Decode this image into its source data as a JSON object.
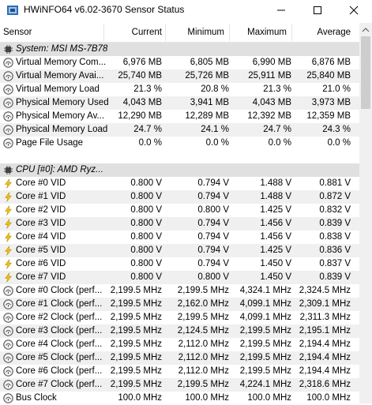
{
  "window": {
    "title": "HWiNFO64 v6.02-3670 Sensor Status"
  },
  "columns": [
    "Sensor",
    "Current",
    "Minimum",
    "Maximum",
    "Average"
  ],
  "rows": [
    {
      "kind": "group",
      "icon": "chip-icon",
      "label": "System: MSI MS-7B78"
    },
    {
      "kind": "sensor",
      "icon": "gauge-icon",
      "name": "Virtual Memory Com...",
      "cur": "6,976 MB",
      "min": "6,805 MB",
      "max": "6,990 MB",
      "avg": "6,876 MB"
    },
    {
      "kind": "sensor",
      "icon": "gauge-icon",
      "name": "Virtual Memory Avai...",
      "cur": "25,740 MB",
      "min": "25,726 MB",
      "max": "25,911 MB",
      "avg": "25,840 MB"
    },
    {
      "kind": "sensor",
      "icon": "gauge-icon",
      "name": "Virtual Memory Load",
      "cur": "21.3 %",
      "min": "20.8 %",
      "max": "21.3 %",
      "avg": "21.0 %"
    },
    {
      "kind": "sensor",
      "icon": "gauge-icon",
      "name": "Physical Memory Used",
      "cur": "4,043 MB",
      "min": "3,941 MB",
      "max": "4,043 MB",
      "avg": "3,973 MB"
    },
    {
      "kind": "sensor",
      "icon": "gauge-icon",
      "name": "Physical Memory Av...",
      "cur": "12,290 MB",
      "min": "12,289 MB",
      "max": "12,392 MB",
      "avg": "12,359 MB"
    },
    {
      "kind": "sensor",
      "icon": "gauge-icon",
      "name": "Physical Memory Load",
      "cur": "24.7 %",
      "min": "24.1 %",
      "max": "24.7 %",
      "avg": "24.3 %"
    },
    {
      "kind": "sensor",
      "icon": "gauge-icon",
      "name": "Page File Usage",
      "cur": "0.0 %",
      "min": "0.0 %",
      "max": "0.0 %",
      "avg": "0.0 %"
    },
    {
      "kind": "spacer"
    },
    {
      "kind": "group",
      "icon": "chip-icon",
      "label": "CPU [#0]: AMD Ryz..."
    },
    {
      "kind": "sensor",
      "icon": "lightning-icon",
      "name": "Core #0 VID",
      "cur": "0.800 V",
      "min": "0.794 V",
      "max": "1.488 V",
      "avg": "0.881 V"
    },
    {
      "kind": "sensor",
      "icon": "lightning-icon",
      "name": "Core #1 VID",
      "cur": "0.800 V",
      "min": "0.794 V",
      "max": "1.488 V",
      "avg": "0.872 V"
    },
    {
      "kind": "sensor",
      "icon": "lightning-icon",
      "name": "Core #2 VID",
      "cur": "0.800 V",
      "min": "0.800 V",
      "max": "1.425 V",
      "avg": "0.832 V"
    },
    {
      "kind": "sensor",
      "icon": "lightning-icon",
      "name": "Core #3 VID",
      "cur": "0.800 V",
      "min": "0.794 V",
      "max": "1.456 V",
      "avg": "0.839 V"
    },
    {
      "kind": "sensor",
      "icon": "lightning-icon",
      "name": "Core #4 VID",
      "cur": "0.800 V",
      "min": "0.794 V",
      "max": "1.456 V",
      "avg": "0.838 V"
    },
    {
      "kind": "sensor",
      "icon": "lightning-icon",
      "name": "Core #5 VID",
      "cur": "0.800 V",
      "min": "0.794 V",
      "max": "1.425 V",
      "avg": "0.836 V"
    },
    {
      "kind": "sensor",
      "icon": "lightning-icon",
      "name": "Core #6 VID",
      "cur": "0.800 V",
      "min": "0.794 V",
      "max": "1.450 V",
      "avg": "0.837 V"
    },
    {
      "kind": "sensor",
      "icon": "lightning-icon",
      "name": "Core #7 VID",
      "cur": "0.800 V",
      "min": "0.800 V",
      "max": "1.450 V",
      "avg": "0.839 V"
    },
    {
      "kind": "sensor",
      "icon": "gauge-icon",
      "name": "Core #0 Clock (perf...",
      "cur": "2,199.5 MHz",
      "min": "2,199.5 MHz",
      "max": "4,324.1 MHz",
      "avg": "2,324.5 MHz"
    },
    {
      "kind": "sensor",
      "icon": "gauge-icon",
      "name": "Core #1 Clock (perf...",
      "cur": "2,199.5 MHz",
      "min": "2,162.0 MHz",
      "max": "4,099.1 MHz",
      "avg": "2,309.1 MHz"
    },
    {
      "kind": "sensor",
      "icon": "gauge-icon",
      "name": "Core #2 Clock (perf...",
      "cur": "2,199.5 MHz",
      "min": "2,199.5 MHz",
      "max": "4,099.1 MHz",
      "avg": "2,311.3 MHz"
    },
    {
      "kind": "sensor",
      "icon": "gauge-icon",
      "name": "Core #3 Clock (perf...",
      "cur": "2,199.5 MHz",
      "min": "2,124.5 MHz",
      "max": "2,199.5 MHz",
      "avg": "2,195.1 MHz"
    },
    {
      "kind": "sensor",
      "icon": "gauge-icon",
      "name": "Core #4 Clock (perf...",
      "cur": "2,199.5 MHz",
      "min": "2,112.0 MHz",
      "max": "2,199.5 MHz",
      "avg": "2,194.4 MHz"
    },
    {
      "kind": "sensor",
      "icon": "gauge-icon",
      "name": "Core #5 Clock (perf...",
      "cur": "2,199.5 MHz",
      "min": "2,112.0 MHz",
      "max": "2,199.5 MHz",
      "avg": "2,194.4 MHz"
    },
    {
      "kind": "sensor",
      "icon": "gauge-icon",
      "name": "Core #6 Clock (perf...",
      "cur": "2,199.5 MHz",
      "min": "2,112.0 MHz",
      "max": "2,199.5 MHz",
      "avg": "2,194.4 MHz"
    },
    {
      "kind": "sensor",
      "icon": "gauge-icon",
      "name": "Core #7 Clock (perf...",
      "cur": "2,199.5 MHz",
      "min": "2,199.5 MHz",
      "max": "4,224.1 MHz",
      "avg": "2,318.6 MHz"
    },
    {
      "kind": "sensor",
      "icon": "gauge-icon",
      "name": "Bus Clock",
      "cur": "100.0 MHz",
      "min": "100.0 MHz",
      "max": "100.0 MHz",
      "avg": "100.0 MHz"
    }
  ],
  "colors": {
    "row_alt": "#f0f0f0",
    "group_bg": "#e0e0e0",
    "lightning": "#f2c200",
    "icon_gray": "#555555"
  }
}
